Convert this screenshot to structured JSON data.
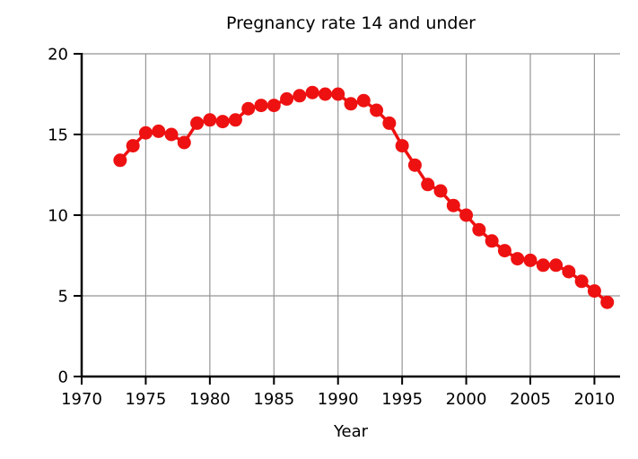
{
  "chart_data": {
    "type": "line",
    "title": "Pregnancy rate 14 and under",
    "xlabel": "Year",
    "ylabel": "",
    "series": [
      {
        "name": "Pregnancy rate 14 and under",
        "x": [
          1973,
          1974,
          1975,
          1976,
          1977,
          1978,
          1979,
          1980,
          1981,
          1982,
          1983,
          1984,
          1985,
          1986,
          1987,
          1988,
          1989,
          1990,
          1991,
          1992,
          1993,
          1994,
          1995,
          1996,
          1997,
          1998,
          1999,
          2000,
          2001,
          2002,
          2003,
          2004,
          2005,
          2006,
          2007,
          2008,
          2009,
          2010,
          2011
        ],
        "values": [
          13.4,
          14.3,
          15.1,
          15.2,
          15.0,
          14.5,
          15.7,
          15.9,
          15.8,
          15.9,
          16.6,
          16.8,
          16.8,
          17.2,
          17.4,
          17.6,
          17.5,
          17.5,
          16.9,
          17.1,
          16.5,
          15.7,
          14.3,
          13.1,
          11.9,
          11.5,
          10.6,
          10.0,
          9.1,
          8.4,
          7.8,
          7.3,
          7.2,
          6.9,
          6.9,
          6.5,
          5.9,
          5.3,
          4.6
        ]
      }
    ],
    "xlim": [
      1970,
      2012
    ],
    "ylim": [
      0,
      20
    ],
    "x_ticks": [
      1970,
      1975,
      1980,
      1985,
      1990,
      1995,
      2000,
      2005,
      2010
    ],
    "y_ticks": [
      0,
      5,
      10,
      15,
      20
    ],
    "grid": true,
    "legend": "none",
    "marker": "circle",
    "colors": {
      "line": "#ee1111",
      "marker": "#ee1111",
      "grid": "#959595",
      "spine": "#000000",
      "background": "#ffffff",
      "text": "#000000"
    }
  }
}
